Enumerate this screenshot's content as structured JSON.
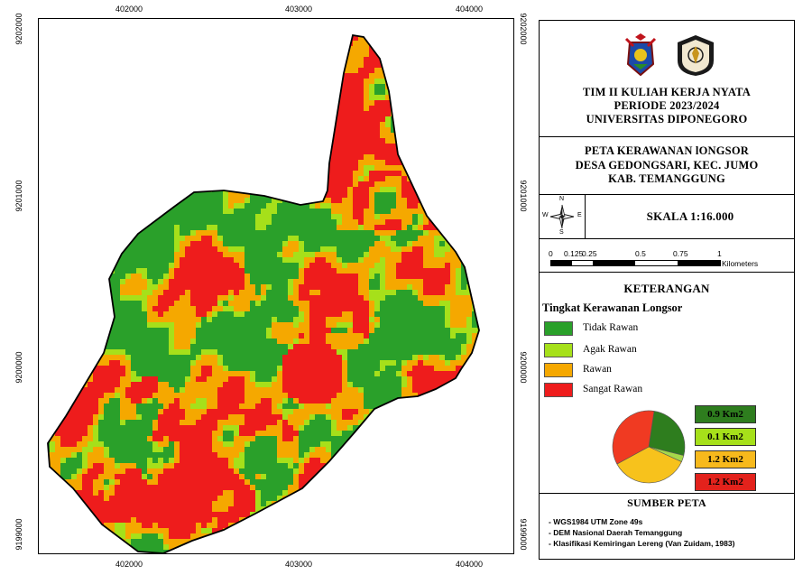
{
  "map": {
    "grid_x_labels": [
      "402000",
      "403000",
      "404000"
    ],
    "grid_y_labels": [
      "9202000",
      "9201000",
      "9200000",
      "9199000"
    ]
  },
  "header": {
    "line1": "TIM II KULIAH KERJA NYATA",
    "line2": "PERIODE 2023/2024",
    "line3": "UNIVERSITAS DIPONEGORO"
  },
  "map_title": {
    "line1": "PETA KERAWANAN lONGSOR",
    "line2": "DESA GEDONGSARI, KEC. JUMO",
    "line3": "KAB. TEMANGGUNG"
  },
  "compass": {
    "n": "N",
    "s": "S",
    "e": "E",
    "w": "W"
  },
  "scale": {
    "text": "SKALA 1:16.000",
    "ticks": [
      "0",
      "0.125",
      "0.25",
      "0.5",
      "0.75",
      "1"
    ],
    "unit": "Kilometers"
  },
  "legend": {
    "heading": "KETERANGAN",
    "subheading": "Tingkat Kerawanan Longsor",
    "classes": [
      {
        "label": "Tidak Rawan",
        "color": "#2aa02a",
        "area": "0.9 Km2",
        "area_color": "#2e7d1e"
      },
      {
        "label": "Agak Rawan",
        "color": "#a6e01a",
        "area": "0.1 Km2",
        "area_color": "#a6e01a"
      },
      {
        "label": "Rawan",
        "color": "#f5a800",
        "area": "1.2 Km2",
        "area_color": "#f7b91c"
      },
      {
        "label": "Sangat Rawan",
        "color": "#ee1c1c",
        "area": "1.2 Km2",
        "area_color": "#e3221c"
      }
    ],
    "pie_colors": [
      "#2e7d1e",
      "#a6d84a",
      "#f7c21c",
      "#f03a22"
    ],
    "pie_values": [
      0.9,
      0.1,
      1.2,
      1.2
    ]
  },
  "source": {
    "heading": "SUMBER PETA",
    "items": [
      "- WGS1984 UTM Zone 49s",
      "- DEM Nasional Daerah Temanggung",
      "- Klasifikasi Kemiringan Lereng (Van Zuidam, 1983)"
    ]
  },
  "colors": {
    "tidak_rawan": "#2aa02a",
    "agak_rawan": "#a6e01a",
    "rawan": "#f5a800",
    "sangat_rawan": "#ee1c1c"
  }
}
